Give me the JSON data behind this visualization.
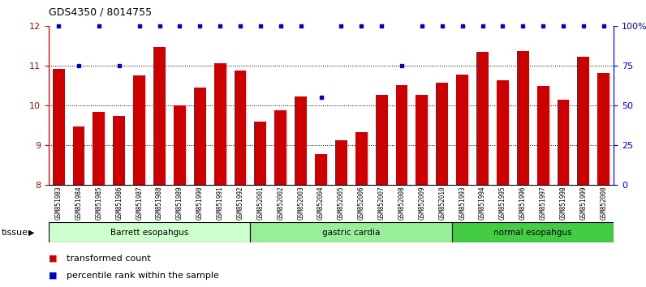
{
  "title": "GDS4350 / 8014755",
  "samples": [
    "GSM851983",
    "GSM851984",
    "GSM851985",
    "GSM851986",
    "GSM851987",
    "GSM851988",
    "GSM851989",
    "GSM851990",
    "GSM851991",
    "GSM851992",
    "GSM852001",
    "GSM852002",
    "GSM852003",
    "GSM852004",
    "GSM852005",
    "GSM852006",
    "GSM852007",
    "GSM852008",
    "GSM852009",
    "GSM852010",
    "GSM851993",
    "GSM851994",
    "GSM851995",
    "GSM851996",
    "GSM851997",
    "GSM851998",
    "GSM851999",
    "GSM852000"
  ],
  "bar_values": [
    10.92,
    9.47,
    9.83,
    9.73,
    10.75,
    11.47,
    10.0,
    10.44,
    11.07,
    10.87,
    9.6,
    9.88,
    10.22,
    8.78,
    9.13,
    9.33,
    10.27,
    10.51,
    10.27,
    10.57,
    10.78,
    11.35,
    10.63,
    11.37,
    10.49,
    10.15,
    11.23,
    10.82
  ],
  "percentile_values": [
    100,
    75,
    100,
    75,
    100,
    100,
    100,
    100,
    100,
    100,
    100,
    100,
    100,
    55,
    100,
    100,
    100,
    75,
    100,
    100,
    100,
    100,
    100,
    100,
    100,
    100,
    100,
    100
  ],
  "bar_color": "#cc0000",
  "percentile_color": "#0000cc",
  "ylim_left": [
    8,
    12
  ],
  "ylim_right": [
    0,
    100
  ],
  "yticks_left": [
    8,
    9,
    10,
    11,
    12
  ],
  "yticks_right": [
    0,
    25,
    50,
    75,
    100
  ],
  "ytick_labels_right": [
    "0",
    "25",
    "50",
    "75",
    "100%"
  ],
  "hlines": [
    9,
    10,
    11
  ],
  "groups": [
    {
      "label": "Barrett esopahgus",
      "start": 0,
      "end": 9,
      "color": "#ccffcc"
    },
    {
      "label": "gastric cardia",
      "start": 10,
      "end": 19,
      "color": "#99ee99"
    },
    {
      "label": "normal esopahgus",
      "start": 20,
      "end": 27,
      "color": "#44cc44"
    }
  ],
  "legend": [
    {
      "label": "transformed count",
      "color": "#cc0000"
    },
    {
      "label": "percentile rank within the sample",
      "color": "#0000cc"
    }
  ],
  "tissue_label": "tissue",
  "xlabel_bg_color": "#d8d8d8"
}
